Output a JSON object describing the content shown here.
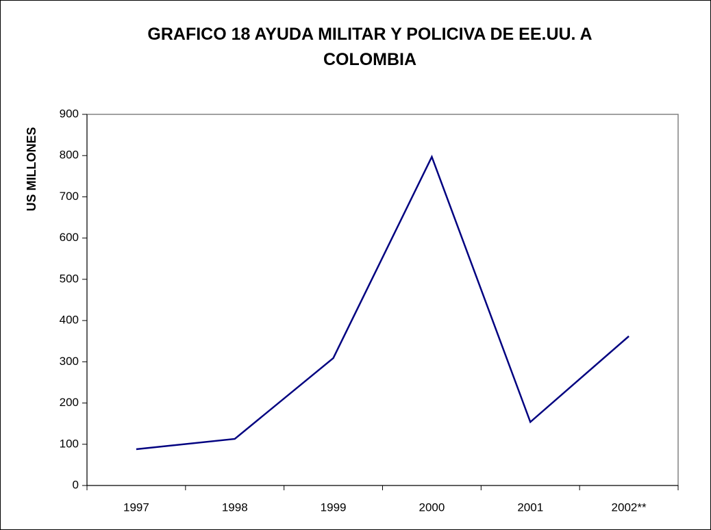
{
  "chart_data": {
    "type": "line",
    "title": "GRAFICO 18  AYUDA MILITAR Y POLICIVA DE EE.UU. A COLOMBIA",
    "y_label": "US MILLONES",
    "categories": [
      "1997",
      "1998",
      "1999",
      "2000",
      "2001",
      "2002**"
    ],
    "values": [
      88,
      113,
      309,
      797,
      154,
      362
    ],
    "color": "#000080",
    "ylim": [
      0,
      900
    ],
    "yticks": [
      0,
      100,
      200,
      300,
      400,
      500,
      600,
      700,
      800,
      900
    ],
    "grid": false
  }
}
